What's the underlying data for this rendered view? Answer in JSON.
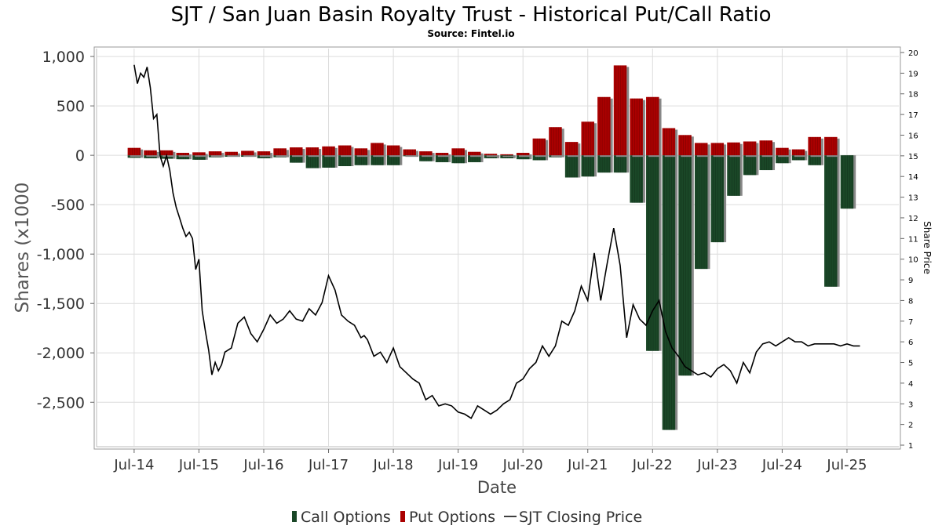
{
  "chart_data": {
    "type": "bar",
    "title": "SJT / San Juan Basin Royalty Trust - Historical Put/Call Ratio",
    "subtitle": "Source: Fintel.io",
    "xlabel": "Date",
    "ylabel": "Shares (x1000",
    "y2label": "Share Price",
    "ylim": [
      -2950,
      1080
    ],
    "y2lim": [
      1,
      20
    ],
    "xlim": [
      2013.92,
      2026.3
    ],
    "y_ticks": [
      1000,
      500,
      0,
      -500,
      -1000,
      -1500,
      -2000,
      -2500
    ],
    "y_tick_labels": [
      "1,000",
      "500",
      "0",
      "-500",
      "-1,000",
      "-1,500",
      "-2,000",
      "-2,500"
    ],
    "y2_ticks": [
      1,
      2,
      3,
      4,
      5,
      6,
      7,
      8,
      9,
      10,
      11,
      12,
      13,
      14,
      15,
      16,
      17,
      18,
      19,
      20
    ],
    "x_ticks": [
      2014.5,
      2015.5,
      2016.5,
      2017.5,
      2018.5,
      2019.5,
      2020.5,
      2021.5,
      2022.5,
      2023.5,
      2024.5,
      2025.5
    ],
    "x_tick_labels": [
      "Jul-14",
      "Jul-15",
      "Jul-16",
      "Jul-17",
      "Jul-18",
      "Jul-19",
      "Jul-20",
      "Jul-21",
      "Jul-22",
      "Jul-23",
      "Jul-24",
      "Jul-25"
    ],
    "grid": true,
    "legend_position": "bottom",
    "bar_width_years": 0.2,
    "series": [
      {
        "name": "Call Options",
        "color": "#1a4727",
        "x": [
          2014.5,
          2014.75,
          2015.0,
          2015.25,
          2015.5,
          2015.75,
          2016.0,
          2016.25,
          2016.5,
          2016.75,
          2017.0,
          2017.25,
          2017.5,
          2017.75,
          2018.0,
          2018.25,
          2018.5,
          2018.75,
          2019.0,
          2019.25,
          2019.5,
          2019.75,
          2020.0,
          2020.25,
          2020.5,
          2020.75,
          2021.0,
          2021.25,
          2021.5,
          2021.75,
          2022.0,
          2022.25,
          2022.5,
          2022.75,
          2023.0,
          2023.25,
          2023.5,
          2023.75,
          2024.0,
          2024.25,
          2024.5,
          2024.75,
          2025.0,
          2025.25,
          2025.5
        ],
        "values": [
          -25,
          -30,
          -35,
          -40,
          -45,
          -20,
          -15,
          -15,
          -30,
          -20,
          -75,
          -130,
          -125,
          -110,
          -100,
          -100,
          -100,
          -10,
          -60,
          -70,
          -80,
          -70,
          -30,
          -30,
          -40,
          -50,
          -20,
          -225,
          -215,
          -175,
          -175,
          -480,
          -1980,
          -2780,
          -2230,
          -1150,
          -880,
          -410,
          -200,
          -150,
          -80,
          -50,
          -100,
          -1330,
          -540
        ]
      },
      {
        "name": "Put Options",
        "color": "#aa0000",
        "x": [
          2014.5,
          2014.75,
          2015.0,
          2015.25,
          2015.5,
          2015.75,
          2016.0,
          2016.25,
          2016.5,
          2016.75,
          2017.0,
          2017.25,
          2017.5,
          2017.75,
          2018.0,
          2018.25,
          2018.5,
          2018.75,
          2019.0,
          2019.25,
          2019.5,
          2019.75,
          2020.0,
          2020.25,
          2020.5,
          2020.75,
          2021.0,
          2021.25,
          2021.5,
          2021.75,
          2022.0,
          2022.25,
          2022.5,
          2022.75,
          2023.0,
          2023.25,
          2023.5,
          2023.75,
          2024.0,
          2024.25,
          2024.5,
          2024.75,
          2025.0,
          2025.25,
          2025.5
        ],
        "values": [
          75,
          50,
          50,
          25,
          30,
          40,
          35,
          45,
          40,
          70,
          80,
          80,
          90,
          100,
          70,
          125,
          100,
          60,
          40,
          25,
          70,
          35,
          15,
          10,
          25,
          170,
          285,
          135,
          340,
          590,
          910,
          575,
          590,
          275,
          205,
          125,
          125,
          130,
          140,
          150,
          75,
          60,
          185,
          185,
          0
        ]
      },
      {
        "name": "SJT Closing Price",
        "color": "#000000",
        "x": [
          2014.5,
          2014.55,
          2014.6,
          2014.65,
          2014.7,
          2014.75,
          2014.8,
          2014.85,
          2014.9,
          2014.95,
          2015.0,
          2015.05,
          2015.1,
          2015.15,
          2015.2,
          2015.25,
          2015.3,
          2015.35,
          2015.4,
          2015.45,
          2015.5,
          2015.55,
          2015.6,
          2015.65,
          2015.7,
          2015.75,
          2015.8,
          2015.85,
          2015.9,
          2016.0,
          2016.1,
          2016.2,
          2016.3,
          2016.4,
          2016.5,
          2016.6,
          2016.7,
          2016.8,
          2016.9,
          2017.0,
          2017.1,
          2017.2,
          2017.3,
          2017.4,
          2017.5,
          2017.6,
          2017.7,
          2017.8,
          2017.9,
          2018.0,
          2018.05,
          2018.1,
          2018.2,
          2018.3,
          2018.4,
          2018.5,
          2018.6,
          2018.7,
          2018.8,
          2018.9,
          2019.0,
          2019.1,
          2019.2,
          2019.3,
          2019.4,
          2019.5,
          2019.6,
          2019.7,
          2019.8,
          2019.9,
          2020.0,
          2020.1,
          2020.2,
          2020.3,
          2020.4,
          2020.5,
          2020.6,
          2020.7,
          2020.8,
          2020.9,
          2021.0,
          2021.1,
          2021.2,
          2021.3,
          2021.4,
          2021.5,
          2021.6,
          2021.7,
          2021.8,
          2021.9,
          2022.0,
          2022.1,
          2022.2,
          2022.3,
          2022.4,
          2022.5,
          2022.6,
          2022.7,
          2022.8,
          2022.9,
          2023.0,
          2023.1,
          2023.2,
          2023.3,
          2023.4,
          2023.5,
          2023.6,
          2023.7,
          2023.8,
          2023.9,
          2024.0,
          2024.1,
          2024.2,
          2024.3,
          2024.4,
          2024.5,
          2024.6,
          2024.7,
          2024.8,
          2024.9,
          2025.0,
          2025.1,
          2025.2,
          2025.3,
          2025.4,
          2025.5,
          2025.6,
          2025.7
        ],
        "values": [
          19.4,
          18.5,
          19.0,
          18.8,
          19.3,
          18.3,
          16.8,
          17.0,
          15.0,
          14.5,
          15.0,
          14.3,
          13.2,
          12.5,
          12.0,
          11.5,
          11.1,
          11.3,
          11.0,
          9.5,
          10.0,
          7.5,
          6.5,
          5.6,
          4.4,
          5.0,
          4.6,
          4.9,
          5.5,
          5.7,
          6.9,
          7.2,
          6.4,
          6.0,
          6.6,
          7.3,
          6.9,
          7.1,
          7.5,
          7.1,
          7.0,
          7.6,
          7.3,
          7.9,
          9.2,
          8.5,
          7.3,
          7.0,
          6.8,
          6.2,
          6.3,
          6.1,
          5.3,
          5.5,
          5.0,
          5.7,
          4.8,
          4.5,
          4.2,
          4.0,
          3.2,
          3.4,
          2.9,
          3.0,
          2.9,
          2.6,
          2.5,
          2.3,
          2.9,
          2.7,
          2.5,
          2.7,
          3.0,
          3.2,
          4.0,
          4.2,
          4.7,
          5.0,
          5.8,
          5.3,
          5.8,
          7.0,
          6.8,
          7.5,
          8.7,
          8.0,
          10.3,
          8.0,
          9.8,
          11.5,
          9.7,
          6.2,
          7.8,
          7.1,
          6.8,
          7.5,
          8.0,
          6.5,
          5.7,
          5.3,
          4.8,
          4.6,
          4.4,
          4.5,
          4.3,
          4.7,
          4.9,
          4.6,
          4.0,
          5.0,
          4.5,
          5.5,
          5.9,
          6.0,
          5.8,
          6.0,
          6.2,
          6.0,
          6.0,
          5.8,
          5.9,
          5.9,
          5.9,
          5.9,
          5.8,
          5.9,
          5.8,
          5.8
        ]
      }
    ]
  }
}
